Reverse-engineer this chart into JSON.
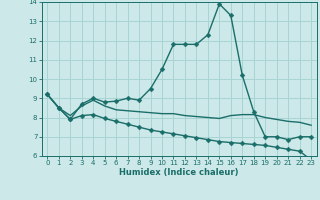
{
  "xlabel": "Humidex (Indice chaleur)",
  "xlim": [
    -0.5,
    23.5
  ],
  "ylim": [
    6,
    14
  ],
  "yticks": [
    6,
    7,
    8,
    9,
    10,
    11,
    12,
    13,
    14
  ],
  "xticks": [
    0,
    1,
    2,
    3,
    4,
    5,
    6,
    7,
    8,
    9,
    10,
    11,
    12,
    13,
    14,
    15,
    16,
    17,
    18,
    19,
    20,
    21,
    22,
    23
  ],
  "bg_color": "#cce8e8",
  "grid_color": "#a8d4d4",
  "line_color": "#1a6e6a",
  "series": [
    {
      "x": [
        0,
        1,
        2,
        3,
        4,
        5,
        6,
        7,
        8,
        9,
        10,
        11,
        12,
        13,
        14,
        15,
        16,
        17,
        18,
        19,
        20,
        21,
        22,
        23
      ],
      "y": [
        9.2,
        8.5,
        7.9,
        8.7,
        9.0,
        8.8,
        8.85,
        9.0,
        8.9,
        9.5,
        10.5,
        11.8,
        11.8,
        11.8,
        12.3,
        13.9,
        13.3,
        10.2,
        8.3,
        7.0,
        7.0,
        6.85,
        7.0,
        7.0
      ],
      "has_marker": true,
      "markersize": 2.5,
      "linewidth": 1.0
    },
    {
      "x": [
        0,
        1,
        2,
        3,
        4,
        5,
        6,
        7,
        8,
        9,
        10,
        11,
        12,
        13,
        14,
        15,
        16,
        17,
        18,
        19,
        20,
        21,
        22,
        23
      ],
      "y": [
        9.2,
        8.5,
        8.1,
        8.6,
        8.9,
        8.6,
        8.4,
        8.35,
        8.3,
        8.25,
        8.2,
        8.2,
        8.1,
        8.05,
        8.0,
        7.95,
        8.1,
        8.15,
        8.15,
        8.0,
        7.9,
        7.8,
        7.75,
        7.6
      ],
      "has_marker": false,
      "markersize": 0,
      "linewidth": 1.0
    },
    {
      "x": [
        0,
        1,
        2,
        3,
        4,
        5,
        6,
        7,
        8,
        9,
        10,
        11,
        12,
        13,
        14,
        15,
        16,
        17,
        18,
        19,
        20,
        21,
        22,
        23
      ],
      "y": [
        9.2,
        8.5,
        7.9,
        8.1,
        8.15,
        7.95,
        7.8,
        7.65,
        7.5,
        7.35,
        7.25,
        7.15,
        7.05,
        6.95,
        6.85,
        6.75,
        6.7,
        6.65,
        6.6,
        6.55,
        6.45,
        6.35,
        6.25,
        5.8
      ],
      "has_marker": true,
      "markersize": 2.5,
      "linewidth": 1.0
    }
  ]
}
